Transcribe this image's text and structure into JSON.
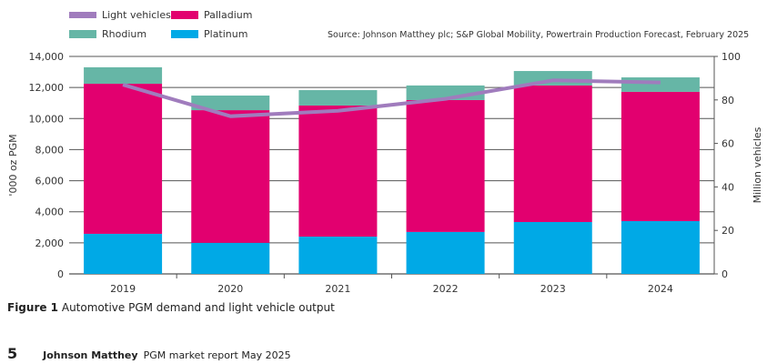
{
  "chart_data": {
    "type": "bar",
    "stacked": true,
    "title": "Automotive PGM demand and light vehicle output",
    "categories": [
      "2019",
      "2020",
      "2021",
      "2022",
      "2023",
      "2024"
    ],
    "series": [
      {
        "name": "Platinum",
        "axis": "left",
        "color": "#00a9e6",
        "values": [
          2580,
          2000,
          2400,
          2700,
          3340,
          3400
        ]
      },
      {
        "name": "Palladium",
        "axis": "left",
        "color": "#e2006f",
        "values": [
          9660,
          8540,
          8440,
          8490,
          8790,
          8320
        ]
      },
      {
        "name": "Rhodium",
        "axis": "left",
        "color": "#66b6a6",
        "values": [
          1060,
          940,
          990,
          940,
          930,
          930
        ]
      },
      {
        "name": "Light vehicles",
        "axis": "right",
        "type": "line",
        "color": "#a07cbd",
        "values": [
          87,
          72.5,
          75,
          80.5,
          89,
          88
        ]
      }
    ],
    "ylabel": "'000 oz PGM",
    "ylim": [
      0,
      14000
    ],
    "yticks": [
      "0",
      "2,000",
      "4,000",
      "6,000",
      "8,000",
      "10,000",
      "12,000",
      "14,000"
    ],
    "y2label": "Million vehicles",
    "y2lim": [
      0,
      100
    ],
    "y2ticks": [
      "0",
      "20",
      "40",
      "60",
      "80",
      "100"
    ],
    "grid": true,
    "legend_position": "top-left",
    "legend": [
      "Light vehicles",
      "Palladium",
      "Rhodium",
      "Platinum"
    ]
  },
  "source": "Source: Johnson Matthey plc; S&P Global Mobility, Powertrain Production Forecast, February 2025",
  "caption": {
    "label": "Figure 1",
    "text": "Automotive PGM demand and light vehicle output"
  },
  "footer": {
    "page": "5",
    "brand": "Johnson Matthey",
    "title": "PGM market report May 2025"
  }
}
